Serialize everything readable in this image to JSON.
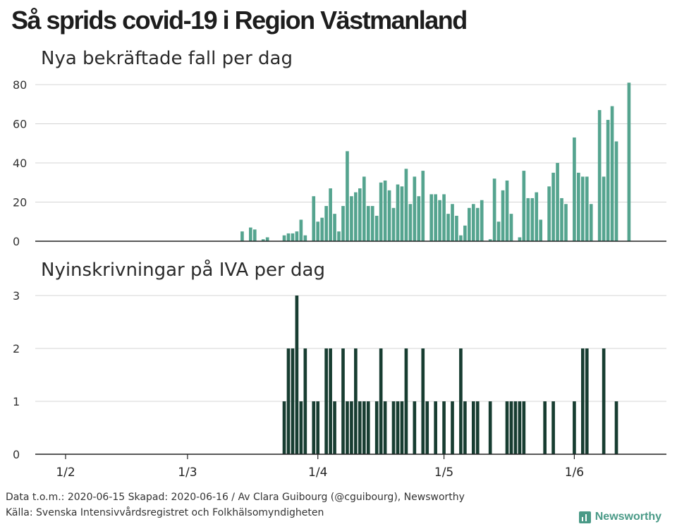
{
  "title": "Så sprids covid-19 i Region Västmanland",
  "chart_data": [
    {
      "type": "bar",
      "title": "Nya bekräftade fall per dag",
      "x_start": "2020-02-01",
      "x_end": "2020-06-15",
      "x_ticks": [
        "1/2",
        "1/3",
        "1/4",
        "1/5",
        "1/6"
      ],
      "y_ticks": [
        0,
        20,
        40,
        60,
        80
      ],
      "ylim": [
        0,
        80
      ],
      "color": "#55a48f",
      "points": [
        {
          "date": "2020-03-14",
          "value": 5
        },
        {
          "date": "2020-03-16",
          "value": 7
        },
        {
          "date": "2020-03-17",
          "value": 6
        },
        {
          "date": "2020-03-19",
          "value": 1
        },
        {
          "date": "2020-03-20",
          "value": 2
        },
        {
          "date": "2020-03-24",
          "value": 3
        },
        {
          "date": "2020-03-25",
          "value": 4
        },
        {
          "date": "2020-03-26",
          "value": 4
        },
        {
          "date": "2020-03-27",
          "value": 5
        },
        {
          "date": "2020-03-28",
          "value": 11
        },
        {
          "date": "2020-03-29",
          "value": 3
        },
        {
          "date": "2020-03-31",
          "value": 23
        },
        {
          "date": "2020-04-01",
          "value": 10
        },
        {
          "date": "2020-04-02",
          "value": 12
        },
        {
          "date": "2020-04-03",
          "value": 18
        },
        {
          "date": "2020-04-04",
          "value": 27
        },
        {
          "date": "2020-04-05",
          "value": 14
        },
        {
          "date": "2020-04-06",
          "value": 5
        },
        {
          "date": "2020-04-07",
          "value": 18
        },
        {
          "date": "2020-04-08",
          "value": 46
        },
        {
          "date": "2020-04-09",
          "value": 23
        },
        {
          "date": "2020-04-10",
          "value": 25
        },
        {
          "date": "2020-04-11",
          "value": 27
        },
        {
          "date": "2020-04-12",
          "value": 33
        },
        {
          "date": "2020-04-13",
          "value": 18
        },
        {
          "date": "2020-04-14",
          "value": 18
        },
        {
          "date": "2020-04-15",
          "value": 13
        },
        {
          "date": "2020-04-16",
          "value": 30
        },
        {
          "date": "2020-04-17",
          "value": 31
        },
        {
          "date": "2020-04-18",
          "value": 26
        },
        {
          "date": "2020-04-19",
          "value": 17
        },
        {
          "date": "2020-04-20",
          "value": 29
        },
        {
          "date": "2020-04-21",
          "value": 28
        },
        {
          "date": "2020-04-22",
          "value": 37
        },
        {
          "date": "2020-04-23",
          "value": 19
        },
        {
          "date": "2020-04-24",
          "value": 33
        },
        {
          "date": "2020-04-25",
          "value": 23
        },
        {
          "date": "2020-04-26",
          "value": 36
        },
        {
          "date": "2020-04-28",
          "value": 24
        },
        {
          "date": "2020-04-29",
          "value": 24
        },
        {
          "date": "2020-04-30",
          "value": 21
        },
        {
          "date": "2020-05-01",
          "value": 24
        },
        {
          "date": "2020-05-02",
          "value": 14
        },
        {
          "date": "2020-05-03",
          "value": 19
        },
        {
          "date": "2020-05-04",
          "value": 13
        },
        {
          "date": "2020-05-05",
          "value": 3
        },
        {
          "date": "2020-05-06",
          "value": 8
        },
        {
          "date": "2020-05-07",
          "value": 17
        },
        {
          "date": "2020-05-08",
          "value": 19
        },
        {
          "date": "2020-05-09",
          "value": 17
        },
        {
          "date": "2020-05-10",
          "value": 21
        },
        {
          "date": "2020-05-12",
          "value": 1
        },
        {
          "date": "2020-05-13",
          "value": 32
        },
        {
          "date": "2020-05-14",
          "value": 10
        },
        {
          "date": "2020-05-15",
          "value": 26
        },
        {
          "date": "2020-05-16",
          "value": 31
        },
        {
          "date": "2020-05-17",
          "value": 14
        },
        {
          "date": "2020-05-19",
          "value": 2
        },
        {
          "date": "2020-05-20",
          "value": 36
        },
        {
          "date": "2020-05-21",
          "value": 22
        },
        {
          "date": "2020-05-22",
          "value": 22
        },
        {
          "date": "2020-05-23",
          "value": 25
        },
        {
          "date": "2020-05-24",
          "value": 11
        },
        {
          "date": "2020-05-26",
          "value": 28
        },
        {
          "date": "2020-05-27",
          "value": 35
        },
        {
          "date": "2020-05-28",
          "value": 40
        },
        {
          "date": "2020-05-29",
          "value": 22
        },
        {
          "date": "2020-05-30",
          "value": 19
        },
        {
          "date": "2020-06-01",
          "value": 53
        },
        {
          "date": "2020-06-02",
          "value": 35
        },
        {
          "date": "2020-06-03",
          "value": 33
        },
        {
          "date": "2020-06-04",
          "value": 33
        },
        {
          "date": "2020-06-05",
          "value": 19
        },
        {
          "date": "2020-06-07",
          "value": 67
        },
        {
          "date": "2020-06-08",
          "value": 33
        },
        {
          "date": "2020-06-09",
          "value": 62
        },
        {
          "date": "2020-06-10",
          "value": 69
        },
        {
          "date": "2020-06-11",
          "value": 51
        },
        {
          "date": "2020-06-14",
          "value": 81
        }
      ]
    },
    {
      "type": "bar",
      "title": "Nyinskrivningar på IVA per dag",
      "x_start": "2020-02-01",
      "x_end": "2020-06-15",
      "x_ticks": [
        "1/2",
        "1/3",
        "1/4",
        "1/5",
        "1/6"
      ],
      "y_ticks": [
        0,
        1,
        2,
        3
      ],
      "ylim": [
        0,
        3
      ],
      "color": "#173d31",
      "points": [
        {
          "date": "2020-03-24",
          "value": 1
        },
        {
          "date": "2020-03-25",
          "value": 2
        },
        {
          "date": "2020-03-26",
          "value": 2
        },
        {
          "date": "2020-03-27",
          "value": 3
        },
        {
          "date": "2020-03-28",
          "value": 1
        },
        {
          "date": "2020-03-29",
          "value": 2
        },
        {
          "date": "2020-03-31",
          "value": 1
        },
        {
          "date": "2020-04-01",
          "value": 1
        },
        {
          "date": "2020-04-03",
          "value": 2
        },
        {
          "date": "2020-04-04",
          "value": 2
        },
        {
          "date": "2020-04-05",
          "value": 1
        },
        {
          "date": "2020-04-07",
          "value": 2
        },
        {
          "date": "2020-04-08",
          "value": 1
        },
        {
          "date": "2020-04-09",
          "value": 1
        },
        {
          "date": "2020-04-10",
          "value": 2
        },
        {
          "date": "2020-04-11",
          "value": 1
        },
        {
          "date": "2020-04-12",
          "value": 1
        },
        {
          "date": "2020-04-13",
          "value": 1
        },
        {
          "date": "2020-04-15",
          "value": 1
        },
        {
          "date": "2020-04-16",
          "value": 2
        },
        {
          "date": "2020-04-17",
          "value": 1
        },
        {
          "date": "2020-04-19",
          "value": 1
        },
        {
          "date": "2020-04-20",
          "value": 1
        },
        {
          "date": "2020-04-21",
          "value": 1
        },
        {
          "date": "2020-04-22",
          "value": 2
        },
        {
          "date": "2020-04-24",
          "value": 1
        },
        {
          "date": "2020-04-26",
          "value": 2
        },
        {
          "date": "2020-04-27",
          "value": 1
        },
        {
          "date": "2020-04-29",
          "value": 1
        },
        {
          "date": "2020-05-01",
          "value": 1
        },
        {
          "date": "2020-05-03",
          "value": 1
        },
        {
          "date": "2020-05-05",
          "value": 2
        },
        {
          "date": "2020-05-06",
          "value": 1
        },
        {
          "date": "2020-05-08",
          "value": 1
        },
        {
          "date": "2020-05-09",
          "value": 1
        },
        {
          "date": "2020-05-12",
          "value": 1
        },
        {
          "date": "2020-05-16",
          "value": 1
        },
        {
          "date": "2020-05-17",
          "value": 1
        },
        {
          "date": "2020-05-18",
          "value": 1
        },
        {
          "date": "2020-05-19",
          "value": 1
        },
        {
          "date": "2020-05-20",
          "value": 1
        },
        {
          "date": "2020-05-25",
          "value": 1
        },
        {
          "date": "2020-05-27",
          "value": 1
        },
        {
          "date": "2020-06-01",
          "value": 1
        },
        {
          "date": "2020-06-03",
          "value": 2
        },
        {
          "date": "2020-06-04",
          "value": 2
        },
        {
          "date": "2020-06-08",
          "value": 2
        },
        {
          "date": "2020-06-11",
          "value": 1
        }
      ]
    }
  ],
  "footer": {
    "line1": "Data t.o.m.: 2020-06-15 Skapad: 2020-06-16 / Av Clara Guibourg (@cguibourg), Newsworthy",
    "line2": "Källa: Svenska Intensivvårdsregistret och Folkhälsomyndigheten"
  },
  "brand": {
    "name": "Newsworthy",
    "icon": "bar-chart-icon",
    "color": "#4a9a87"
  }
}
